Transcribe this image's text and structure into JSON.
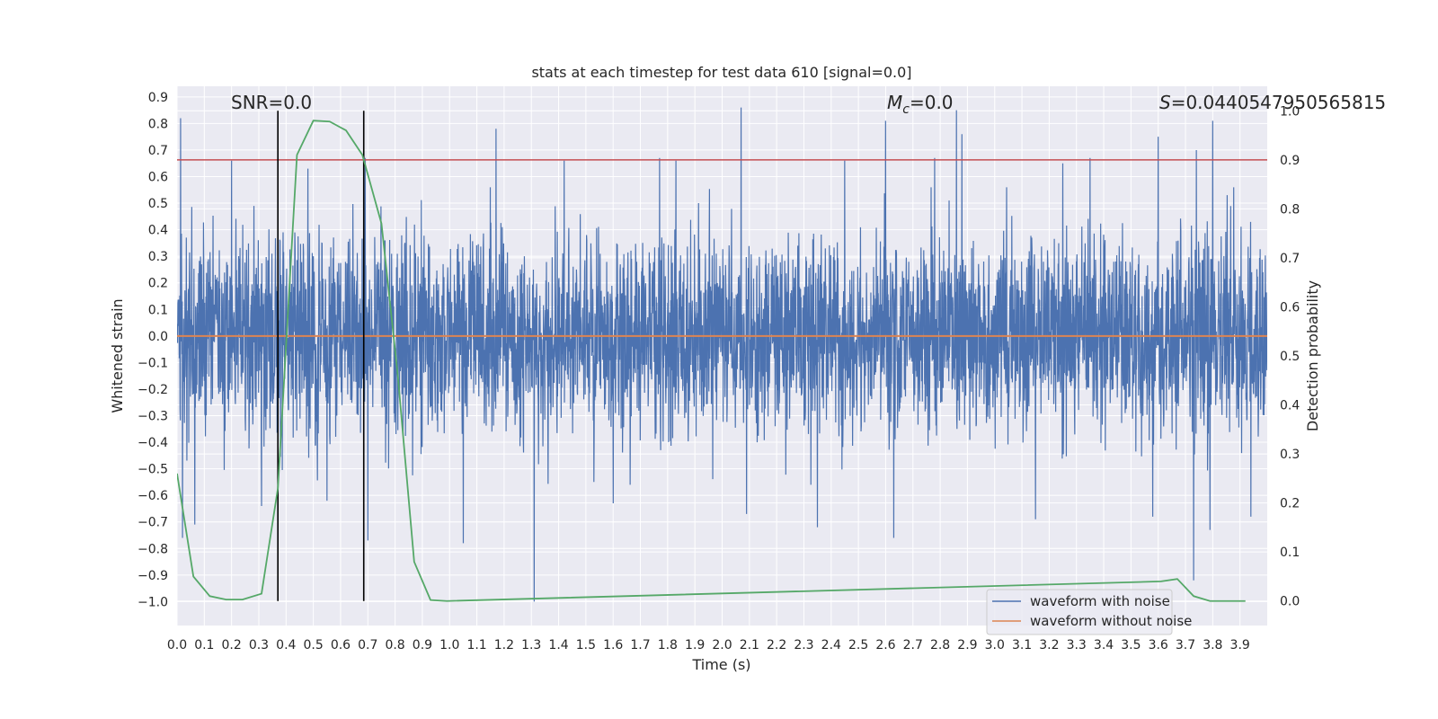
{
  "chart_data": {
    "type": "line",
    "title": "stats at each timestep for test data 610 [signal=0.0]",
    "xlabel": "Time (s)",
    "ylabel": "Whitened strain",
    "y2label": "Detection probability",
    "xlim": [
      0.0,
      4.0
    ],
    "ylim": [
      -1.09,
      0.94
    ],
    "y2lim": [
      -0.05,
      1.05
    ],
    "x_ticks": [
      0.0,
      0.1,
      0.2,
      0.3,
      0.4,
      0.5,
      0.6,
      0.7,
      0.8,
      0.9,
      1.0,
      1.1,
      1.2,
      1.3,
      1.4,
      1.5,
      1.6,
      1.7,
      1.8,
      1.9,
      2.0,
      2.1,
      2.2,
      2.3,
      2.4,
      2.5,
      2.6,
      2.7,
      2.8,
      2.9,
      3.0,
      3.1,
      3.2,
      3.3,
      3.4,
      3.5,
      3.6,
      3.7,
      3.8,
      3.9
    ],
    "x_tick_labels": [
      "0.0",
      "0.1",
      "0.2",
      "0.3",
      "0.4",
      "0.5",
      "0.6",
      "0.7",
      "0.8",
      "0.9",
      "1.0",
      "1.1",
      "1.2",
      "1.3",
      "1.4",
      "1.5",
      "1.6",
      "1.7",
      "1.8",
      "1.9",
      "2.0",
      "2.1",
      "2.2",
      "2.3",
      "2.4",
      "2.5",
      "2.6",
      "2.7",
      "2.8",
      "2.9",
      "3.0",
      "3.1",
      "3.2",
      "3.3",
      "3.4",
      "3.5",
      "3.6",
      "3.7",
      "3.8",
      "3.9"
    ],
    "y_ticks": [
      0.9,
      0.8,
      0.7,
      0.6,
      0.5,
      0.4,
      0.3,
      0.2,
      0.1,
      0.0,
      -0.1,
      -0.2,
      -0.3,
      -0.4,
      -0.5,
      -0.6,
      -0.7,
      -0.8,
      -0.9,
      -1.0
    ],
    "y_tick_labels": [
      "0.9",
      "0.8",
      "0.7",
      "0.6",
      "0.5",
      "0.4",
      "0.3",
      "0.2",
      "0.1",
      "0.0",
      "−0.1",
      "−0.2",
      "−0.3",
      "−0.4",
      "−0.5",
      "−0.6",
      "−0.7",
      "−0.8",
      "−0.9",
      "−1.0"
    ],
    "y2_ticks": [
      1.0,
      0.9,
      0.8,
      0.7,
      0.6,
      0.5,
      0.4,
      0.3,
      0.2,
      0.1,
      0.0
    ],
    "y2_tick_labels": [
      "1.0",
      "0.9",
      "0.8",
      "0.7",
      "0.6",
      "0.5",
      "0.4",
      "0.3",
      "0.2",
      "0.1",
      "0.0"
    ],
    "grid": true,
    "legend_position": "lower-right",
    "annotations": {
      "snr": "SNR=0.0",
      "mc_symbol": "M",
      "mc_sub": "c",
      "mc_value": "=0.0",
      "s_symbol": "S",
      "s_value": "=0.0440547950565815"
    },
    "series": [
      {
        "name": "waveform with noise",
        "color": "#4c72b0",
        "style": "noise",
        "amplitude_typical": 0.3,
        "peaks": [
          {
            "x": 0.013,
            "y": 0.82
          },
          {
            "x": 0.02,
            "y": -0.76
          },
          {
            "x": 0.065,
            "y": -0.71
          },
          {
            "x": 0.2,
            "y": 0.66
          },
          {
            "x": 0.31,
            "y": -0.64
          },
          {
            "x": 0.48,
            "y": 0.63
          },
          {
            "x": 0.55,
            "y": -0.62
          },
          {
            "x": 0.69,
            "y": 0.67
          },
          {
            "x": 0.7,
            "y": -0.77
          },
          {
            "x": 1.05,
            "y": -0.78
          },
          {
            "x": 1.17,
            "y": 0.78
          },
          {
            "x": 1.31,
            "y": -1.0
          },
          {
            "x": 1.42,
            "y": 0.66
          },
          {
            "x": 1.6,
            "y": -0.63
          },
          {
            "x": 1.77,
            "y": 0.67
          },
          {
            "x": 1.83,
            "y": 0.66
          },
          {
            "x": 2.07,
            "y": 0.86
          },
          {
            "x": 2.09,
            "y": -0.67
          },
          {
            "x": 2.35,
            "y": -0.72
          },
          {
            "x": 2.45,
            "y": 0.66
          },
          {
            "x": 2.6,
            "y": 0.81
          },
          {
            "x": 2.63,
            "y": -0.76
          },
          {
            "x": 2.78,
            "y": 0.67
          },
          {
            "x": 2.86,
            "y": 0.85
          },
          {
            "x": 2.88,
            "y": 0.76
          },
          {
            "x": 3.15,
            "y": -0.69
          },
          {
            "x": 3.25,
            "y": 0.65
          },
          {
            "x": 3.35,
            "y": 0.67
          },
          {
            "x": 3.58,
            "y": -0.68
          },
          {
            "x": 3.6,
            "y": 0.75
          },
          {
            "x": 3.73,
            "y": -0.92
          },
          {
            "x": 3.74,
            "y": 0.7
          },
          {
            "x": 3.79,
            "y": -0.73
          },
          {
            "x": 3.8,
            "y": 0.81
          },
          {
            "x": 3.94,
            "y": -0.68
          }
        ]
      },
      {
        "name": "waveform without noise",
        "color": "#dd8452",
        "x": [
          0.0,
          4.0
        ],
        "y": [
          0.0,
          0.0
        ]
      },
      {
        "color": "#55a868",
        "axis": "right",
        "x": [
          0.0,
          0.06,
          0.12,
          0.18,
          0.24,
          0.31,
          0.37,
          0.44,
          0.5,
          0.56,
          0.62,
          0.68,
          0.75,
          0.81,
          0.87,
          0.93,
          0.99,
          3.61,
          3.67,
          3.73,
          3.79,
          3.86,
          3.92
        ],
        "y": [
          0.26,
          0.05,
          0.01,
          0.003,
          0.003,
          0.015,
          0.23,
          0.91,
          0.98,
          0.978,
          0.96,
          0.91,
          0.77,
          0.46,
          0.08,
          0.002,
          0.0,
          0.04,
          0.045,
          0.01,
          0.0,
          0.0,
          0.0
        ]
      }
    ],
    "threshold_line": {
      "axis": "right",
      "y": 0.9,
      "color": "#c44e52"
    },
    "vertical_lines": [
      {
        "x": 0.37,
        "color": "#000000"
      },
      {
        "x": 0.685,
        "color": "#000000"
      }
    ]
  }
}
